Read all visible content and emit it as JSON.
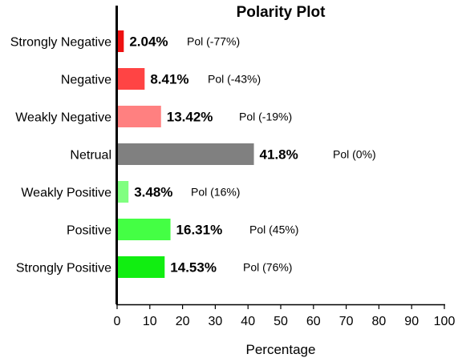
{
  "chart_data": {
    "type": "bar",
    "orientation": "horizontal",
    "title": "Polarity Plot",
    "xlabel": "Percentage",
    "ylabel": "",
    "xlim": [
      0,
      100
    ],
    "xticks": [
      0,
      10,
      20,
      30,
      40,
      50,
      60,
      70,
      80,
      90,
      100
    ],
    "grid": false,
    "categories": [
      "Strongly Negative",
      "Negative",
      "Weakly Negative",
      "Netrual",
      "Weakly Positive",
      "Positive",
      "Strongly Positive"
    ],
    "values": [
      2.04,
      8.41,
      13.42,
      41.8,
      3.48,
      16.31,
      14.53
    ],
    "value_labels": [
      "2.04%",
      "8.41%",
      "13.42%",
      "41.8%",
      "3.48%",
      "16.31%",
      "14.53%"
    ],
    "polarity_labels": [
      "Pol (-77%)",
      "Pol (-43%)",
      "Pol (-19%)",
      "Pol (0%)",
      "Pol (16%)",
      "Pol (45%)",
      "Pol (76%)"
    ],
    "colors": [
      "#ee1111",
      "#ff4444",
      "#ff8080",
      "#808080",
      "#80ff80",
      "#44ff44",
      "#11ee11"
    ]
  }
}
